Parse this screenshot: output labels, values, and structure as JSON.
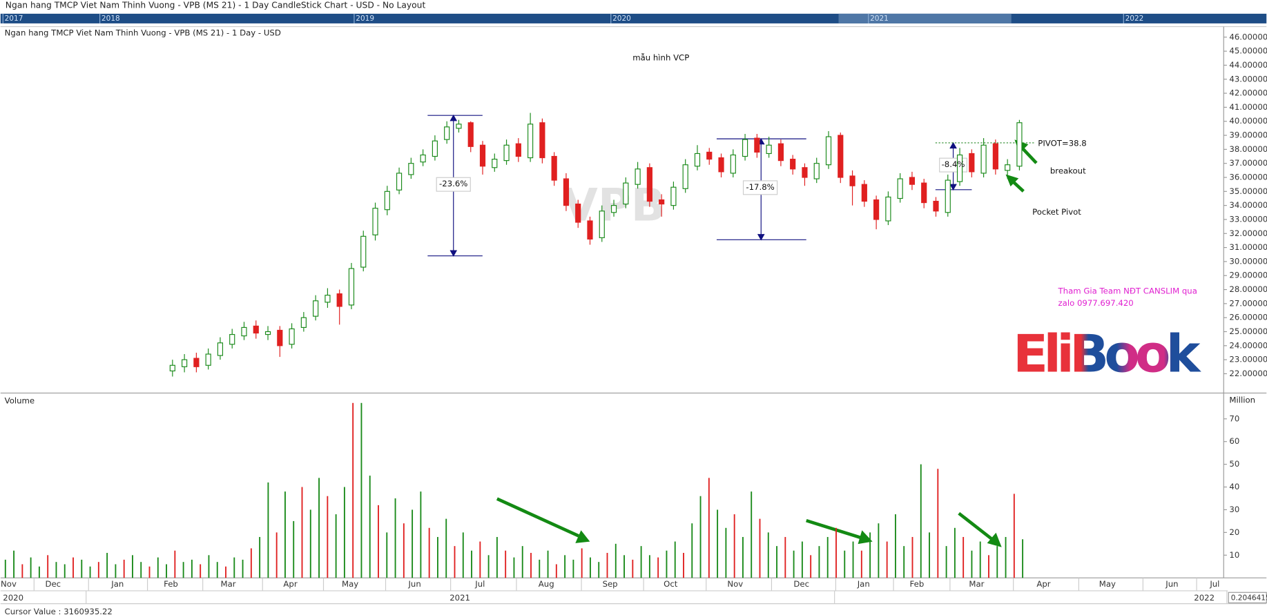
{
  "window_title": "Ngan hang TMCP Viet Nam Thinh Vuong - VPB (MS 21) - 1 Day CandleStick Chart - USD - No Layout",
  "timeline_years": [
    "2017",
    "2018",
    "2019",
    "2020",
    "2021",
    "2022"
  ],
  "cursor_value": "Cursor Value : 3160935.22",
  "scale_box": "0.2046415",
  "months": [
    "Nov",
    "Dec",
    "Jan",
    "Feb",
    "Mar",
    "Apr",
    "May",
    "Jun",
    "Jul",
    "Aug",
    "Sep",
    "Oct",
    "Nov",
    "Dec",
    "Jan",
    "Feb",
    "Mar",
    "Apr",
    "May",
    "Jun",
    "Jul"
  ],
  "years": [
    "2020",
    "2021",
    "2022"
  ],
  "chart_data": [
    {
      "type": "candlestick",
      "title": "Ngan hang TMCP Viet Nam Thinh Vuong - VPB (MS 21) - 1 Day - USD",
      "watermark": "VPB",
      "logo": "EliBook",
      "up_color": "#1a8a1a",
      "down_color": "#e02020",
      "annotations": [
        "mẫu hình VCP",
        "-23.6%",
        "-17.8%",
        "-8.4%",
        "PIVOT=38.8",
        "breakout",
        "Pocket Pivot",
        "Tham Gia Team NĐT CANSLIM qua",
        "zalo 0977.697.420"
      ],
      "open": [
        22.2,
        22.5,
        23.1,
        22.6,
        23.3,
        24.1,
        24.7,
        25.4,
        24.8,
        25.1,
        24.1,
        25.3,
        26.1,
        27.1,
        27.7,
        26.9,
        29.6,
        31.9,
        33.7,
        35.1,
        36.2,
        37.1,
        37.5,
        38.7,
        39.5,
        39.9,
        38.3,
        36.7,
        37.2,
        38.4,
        37.4,
        39.9,
        37.5,
        35.9,
        34.1,
        32.9,
        31.7,
        33.5,
        34.1,
        35.5,
        36.7,
        34.4,
        34.0,
        35.2,
        36.8,
        37.8,
        37.4,
        36.3,
        37.5,
        38.8,
        37.7,
        38.4,
        37.3,
        36.7,
        35.9,
        36.9,
        39.0,
        36.1,
        35.5,
        34.4,
        32.9,
        34.5,
        36.0,
        35.6,
        34.3,
        33.5,
        35.7,
        37.7,
        36.3,
        38.4,
        36.5,
        36.8
      ],
      "high": [
        23.0,
        23.4,
        23.5,
        23.8,
        24.6,
        25.2,
        25.7,
        25.8,
        25.4,
        25.4,
        25.6,
        26.4,
        27.6,
        28.1,
        28.0,
        29.9,
        32.2,
        34.2,
        35.4,
        36.7,
        37.4,
        38.0,
        39.0,
        40.0,
        40.1,
        40.0,
        38.6,
        37.7,
        38.7,
        38.8,
        40.6,
        40.2,
        37.8,
        36.3,
        34.4,
        33.2,
        34.0,
        34.4,
        36.0,
        37.1,
        37.0,
        34.8,
        35.7,
        37.3,
        38.3,
        38.1,
        37.7,
        38.0,
        39.1,
        39.1,
        38.9,
        38.7,
        37.6,
        37.0,
        37.4,
        39.3,
        39.2,
        36.5,
        35.8,
        34.7,
        35.0,
        36.3,
        36.4,
        35.9,
        34.6,
        36.2,
        38.1,
        38.0,
        38.8,
        38.7,
        37.3,
        40.1
      ],
      "low": [
        21.8,
        22.1,
        22.1,
        22.3,
        23.0,
        23.8,
        24.4,
        24.5,
        24.4,
        23.2,
        23.8,
        25.0,
        25.8,
        26.7,
        25.5,
        26.6,
        29.3,
        31.5,
        33.3,
        34.8,
        35.9,
        36.8,
        37.2,
        38.4,
        39.2,
        37.8,
        36.2,
        36.4,
        36.9,
        37.1,
        37.1,
        37.0,
        35.4,
        33.6,
        32.4,
        31.2,
        31.4,
        33.2,
        33.8,
        35.2,
        33.9,
        33.2,
        33.7,
        34.9,
        36.5,
        36.9,
        36.0,
        36.0,
        37.2,
        37.4,
        37.4,
        36.8,
        36.2,
        35.4,
        35.6,
        36.6,
        35.6,
        34.0,
        33.9,
        32.3,
        32.6,
        34.2,
        35.1,
        33.8,
        33.2,
        33.2,
        35.4,
        36.0,
        36.0,
        36.2,
        35.9,
        36.5
      ],
      "close": [
        22.6,
        23.0,
        22.5,
        23.4,
        24.2,
        24.8,
        25.3,
        24.9,
        25.0,
        24.0,
        25.2,
        26.0,
        27.2,
        27.6,
        26.8,
        29.5,
        31.8,
        33.8,
        35.0,
        36.3,
        37.0,
        37.6,
        38.6,
        39.6,
        39.8,
        38.2,
        36.8,
        37.3,
        38.3,
        37.5,
        39.8,
        37.4,
        35.8,
        34.0,
        32.8,
        31.6,
        33.6,
        34.0,
        35.6,
        36.6,
        34.3,
        34.1,
        35.3,
        36.9,
        37.7,
        37.3,
        36.4,
        37.6,
        38.7,
        37.8,
        38.3,
        37.2,
        36.6,
        36.0,
        37.0,
        38.9,
        36.0,
        35.4,
        34.3,
        33.0,
        34.6,
        35.9,
        35.5,
        34.2,
        33.6,
        35.8,
        37.6,
        36.4,
        38.3,
        36.6,
        36.9,
        39.9
      ],
      "ylim": [
        20.68,
        46.75
      ],
      "yticks": [
        {
          "value": 22,
          "label": "22.000000"
        },
        {
          "value": 23,
          "label": "23.000000"
        },
        {
          "value": 24,
          "label": "24.000000"
        },
        {
          "value": 25,
          "label": "25.000000"
        },
        {
          "value": 26,
          "label": "26.000000"
        },
        {
          "value": 27,
          "label": "27.000000"
        },
        {
          "value": 28,
          "label": "28.000000"
        },
        {
          "value": 29,
          "label": "29.000000"
        },
        {
          "value": 30,
          "label": "30.000000"
        },
        {
          "value": 31,
          "label": "31.000000"
        },
        {
          "value": 32,
          "label": "32.000000"
        },
        {
          "value": 33,
          "label": "33.000000"
        },
        {
          "value": 34,
          "label": "34.000000"
        },
        {
          "value": 35,
          "label": "35.000000"
        },
        {
          "value": 36,
          "label": "36.000000"
        },
        {
          "value": 37,
          "label": "37.000000"
        },
        {
          "value": 38,
          "label": "38.000000"
        },
        {
          "value": 39,
          "label": "39.000000"
        },
        {
          "value": 40,
          "label": "40.000000"
        },
        {
          "value": 41,
          "label": "41.000000"
        },
        {
          "value": 42,
          "label": "42.000000"
        },
        {
          "value": 43,
          "label": "43.000000"
        },
        {
          "value": 44,
          "label": "44.000000"
        },
        {
          "value": 45,
          "label": "45.000000"
        },
        {
          "value": 46,
          "label": "46.000000"
        }
      ]
    },
    {
      "type": "bar",
      "title": "Volume",
      "y_label": "Million",
      "values": [
        8,
        12,
        6,
        9,
        5,
        10,
        7,
        6,
        9,
        8,
        5,
        7,
        11,
        6,
        8,
        10,
        7,
        5,
        9,
        6,
        12,
        7,
        8,
        6,
        10,
        7,
        5,
        9,
        8,
        13,
        18,
        42,
        20,
        38,
        25,
        40,
        30,
        44,
        36,
        28,
        40,
        77,
        77,
        45,
        32,
        20,
        35,
        24,
        30,
        38,
        22,
        18,
        26,
        14,
        20,
        12,
        16,
        10,
        18,
        12,
        9,
        14,
        11,
        8,
        12,
        6,
        10,
        8,
        13,
        9,
        7,
        11,
        15,
        10,
        8,
        14,
        10,
        9,
        12,
        16,
        11,
        24,
        36,
        44,
        30,
        22,
        28,
        18,
        38,
        26,
        20,
        14,
        18,
        12,
        16,
        10,
        14,
        18,
        22,
        12,
        16,
        12,
        20,
        24,
        16,
        28,
        14,
        18,
        50,
        20,
        48,
        14,
        22,
        18,
        12,
        16,
        10,
        14,
        18,
        37,
        17
      ],
      "ylim": [
        0,
        81
      ],
      "yticks": [
        10,
        20,
        30,
        40,
        50,
        60,
        70
      ]
    }
  ]
}
